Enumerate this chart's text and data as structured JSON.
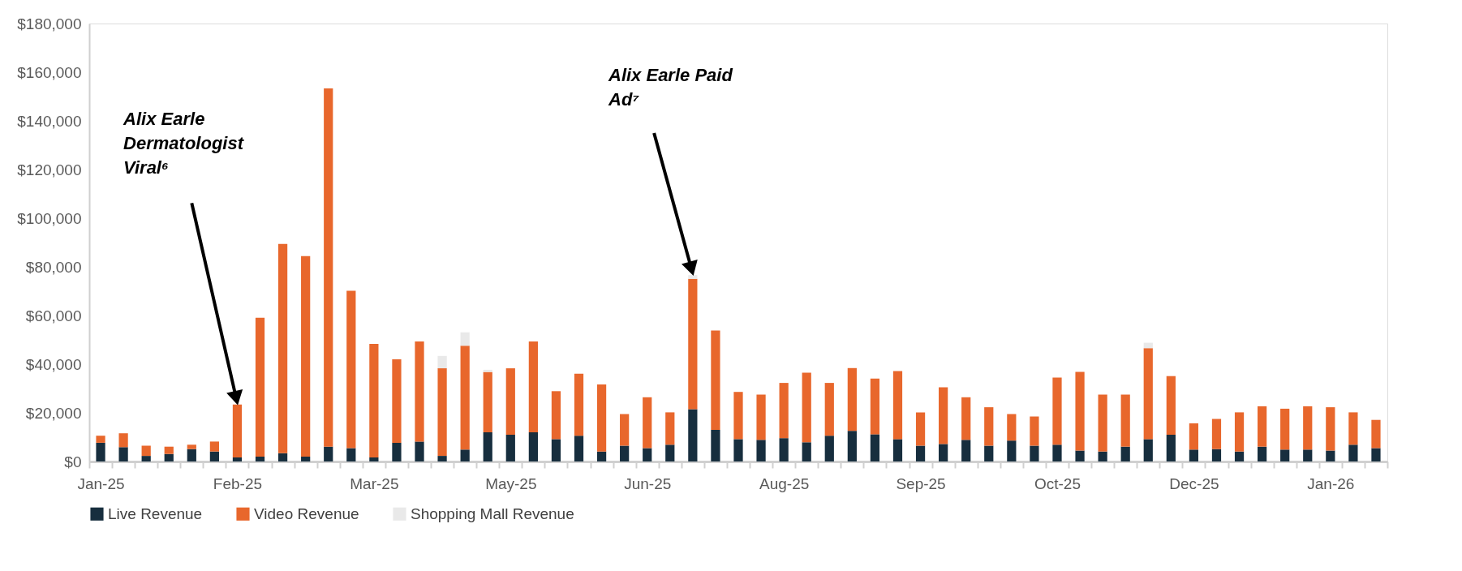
{
  "chart_data": {
    "type": "bar",
    "stacked": true,
    "categories": [
      "Jan-25",
      null,
      null,
      null,
      null,
      null,
      "Feb-25",
      null,
      null,
      null,
      null,
      null,
      "Mar-25",
      null,
      null,
      null,
      null,
      null,
      "May-25",
      null,
      null,
      null,
      null,
      null,
      "Jun-25",
      null,
      null,
      null,
      null,
      null,
      "Aug-25",
      null,
      null,
      null,
      null,
      null,
      "Sep-25",
      null,
      null,
      null,
      null,
      null,
      "Oct-25",
      null,
      null,
      null,
      null,
      null,
      "Dec-25",
      null,
      null,
      null,
      null,
      null,
      "Jan-26",
      null,
      null
    ],
    "series": [
      {
        "name": "Live Revenue",
        "color": "#172e3e",
        "values": [
          7700,
          5900,
          2300,
          3100,
          5100,
          4100,
          1700,
          2000,
          3400,
          2000,
          6100,
          5500,
          1700,
          7700,
          8200,
          2300,
          4900,
          12000,
          11000,
          12000,
          9200,
          10600,
          4100,
          6500,
          5500,
          6900,
          21500,
          13000,
          9200,
          8900,
          9600,
          7900,
          10600,
          12600,
          11200,
          9200,
          6500,
          7200,
          8900,
          6500,
          8600,
          6500,
          6900,
          4500,
          4100,
          6100,
          9200,
          11000,
          4900,
          5100,
          4100,
          6100,
          4900,
          4900,
          4500,
          6900,
          5500
        ]
      },
      {
        "name": "Video Revenue",
        "color": "#e8672c",
        "values": [
          2900,
          5700,
          4200,
          3000,
          1800,
          4100,
          21700,
          57100,
          86000,
          82400,
          147200,
          64700,
          46600,
          34300,
          41100,
          36000,
          42700,
          24800,
          27300,
          37300,
          19700,
          25500,
          27600,
          13000,
          20900,
          13300,
          53600,
          40800,
          19400,
          18600,
          22700,
          28600,
          21700,
          25800,
          22900,
          28000,
          13700,
          23300,
          17500,
          15800,
          10900,
          12000,
          27600,
          32300,
          23400,
          21400,
          37400,
          24100,
          10800,
          12400,
          16100,
          16600,
          16800,
          17800,
          17800,
          13300,
          11600
        ]
      },
      {
        "name": "Shopping Mall Revenue",
        "color": "#e9e9e9",
        "values": [
          0,
          0,
          0,
          0,
          0,
          0,
          0,
          0,
          0,
          0,
          0,
          0,
          0,
          0,
          0,
          5100,
          5500,
          900,
          0,
          0,
          0,
          0,
          0,
          0,
          0,
          0,
          1500,
          0,
          0,
          0,
          0,
          0,
          0,
          0,
          0,
          0,
          0,
          0,
          0,
          0,
          0,
          0,
          0,
          0,
          0,
          0,
          2200,
          0,
          0,
          0,
          0,
          0,
          0,
          0,
          0,
          0,
          0
        ]
      }
    ],
    "ylim": [
      0,
      180000
    ],
    "yticks": [
      {
        "value": 0,
        "label": "$0"
      },
      {
        "value": 20000,
        "label": "$20,000"
      },
      {
        "value": 40000,
        "label": "$40,000"
      },
      {
        "value": 60000,
        "label": "$60,000"
      },
      {
        "value": 80000,
        "label": "$80,000"
      },
      {
        "value": 100000,
        "label": "$100,000"
      },
      {
        "value": 120000,
        "label": "$120,000"
      },
      {
        "value": 140000,
        "label": "$140,000"
      },
      {
        "value": 160000,
        "label": "$160,000"
      },
      {
        "value": 180000,
        "label": "$180,000"
      }
    ],
    "grid": false,
    "legend": "bottom",
    "annotations": [
      "Alix Earle\nDermatologist\nViral⁶",
      "Alix Earle Paid\nAd⁷"
    ]
  }
}
